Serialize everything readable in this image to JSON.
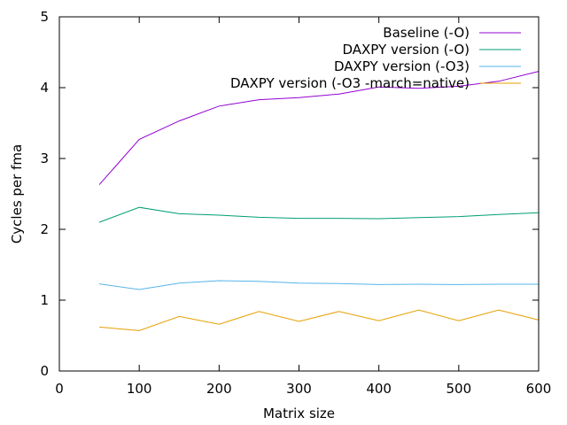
{
  "chart_data": {
    "type": "line",
    "title": "",
    "xlabel": "Matrix size",
    "ylabel": "Cycles per fma",
    "xlim": [
      0,
      600
    ],
    "ylim": [
      0,
      5
    ],
    "x_ticks": [
      0,
      100,
      200,
      300,
      400,
      500,
      600
    ],
    "y_ticks": [
      0,
      1,
      2,
      3,
      4,
      5
    ],
    "grid": false,
    "legend_position": "top-right",
    "x": [
      50,
      100,
      150,
      200,
      250,
      300,
      350,
      400,
      450,
      500,
      550,
      600
    ],
    "series": [
      {
        "name": "Baseline (-O)",
        "color": "#9400d3",
        "values": [
          2.63,
          3.27,
          3.53,
          3.74,
          3.83,
          3.86,
          3.91,
          4.01,
          3.99,
          4.02,
          4.09,
          4.23
        ]
      },
      {
        "name": "DAXPY version (-O)",
        "color": "#009e73",
        "values": [
          2.1,
          2.31,
          2.22,
          2.2,
          2.17,
          2.155,
          2.155,
          2.15,
          2.165,
          2.18,
          2.21,
          2.235
        ]
      },
      {
        "name": "DAXPY version (-O3)",
        "color": "#56b4e9",
        "values": [
          1.23,
          1.15,
          1.24,
          1.275,
          1.265,
          1.24,
          1.235,
          1.22,
          1.225,
          1.22,
          1.225,
          1.225
        ]
      },
      {
        "name": "DAXPY version (-O3 -march=native)",
        "color": "#e69f00",
        "values": [
          0.62,
          0.57,
          0.77,
          0.66,
          0.84,
          0.7,
          0.84,
          0.71,
          0.86,
          0.71,
          0.86,
          0.72
        ]
      }
    ]
  }
}
